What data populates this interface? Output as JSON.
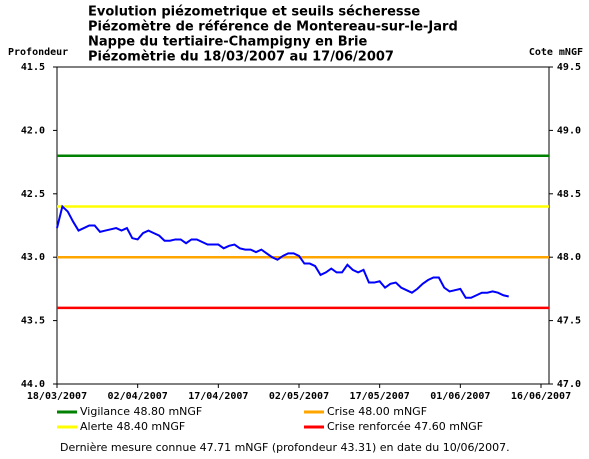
{
  "chart_data": {
    "type": "line",
    "title": [
      "Evolution piézometrique et seuils sécheresse",
      "Piézomètre de référence de Montereau-sur-le-Jard",
      "Nappe du tertiaire-Champigny en Brie",
      "Piézomètrie du 18/03/2007 au 17/06/2007"
    ],
    "ylabel": "Profondeur",
    "y2label": "Cote mNGF",
    "x": [
      "18/03/2007",
      "19/03/2007",
      "20/03/2007",
      "21/03/2007",
      "22/03/2007",
      "23/03/2007",
      "24/03/2007",
      "25/03/2007",
      "26/03/2007",
      "27/03/2007",
      "28/03/2007",
      "29/03/2007",
      "30/03/2007",
      "31/03/2007",
      "01/04/2007",
      "02/04/2007",
      "03/04/2007",
      "04/04/2007",
      "05/04/2007",
      "06/04/2007",
      "07/04/2007",
      "08/04/2007",
      "09/04/2007",
      "10/04/2007",
      "11/04/2007",
      "12/04/2007",
      "13/04/2007",
      "14/04/2007",
      "15/04/2007",
      "16/04/2007",
      "17/04/2007",
      "18/04/2007",
      "19/04/2007",
      "20/04/2007",
      "21/04/2007",
      "22/04/2007",
      "23/04/2007",
      "24/04/2007",
      "25/04/2007",
      "26/04/2007",
      "27/04/2007",
      "28/04/2007",
      "29/04/2007",
      "30/04/2007",
      "01/05/2007",
      "02/05/2007",
      "03/05/2007",
      "04/05/2007",
      "05/05/2007",
      "06/05/2007",
      "07/05/2007",
      "08/05/2007",
      "09/05/2007",
      "10/05/2007",
      "11/05/2007",
      "12/05/2007",
      "13/05/2007",
      "14/05/2007",
      "15/05/2007",
      "16/05/2007",
      "17/05/2007",
      "18/05/2007",
      "19/05/2007",
      "20/05/2007",
      "21/05/2007",
      "22/05/2007",
      "23/05/2007",
      "24/05/2007",
      "25/05/2007",
      "26/05/2007",
      "27/05/2007",
      "28/05/2007",
      "29/05/2007",
      "30/05/2007",
      "31/05/2007",
      "01/06/2007",
      "02/06/2007",
      "03/06/2007",
      "04/06/2007",
      "05/06/2007",
      "06/06/2007",
      "07/06/2007",
      "08/06/2007",
      "09/06/2007",
      "10/06/2007"
    ],
    "series": [
      {
        "color": "#0000ff",
        "values": [
          42.77,
          42.6,
          42.64,
          42.72,
          42.79,
          42.77,
          42.75,
          42.75,
          42.8,
          42.79,
          42.78,
          42.77,
          42.79,
          42.77,
          42.85,
          42.86,
          42.81,
          42.79,
          42.81,
          42.83,
          42.87,
          42.87,
          42.86,
          42.86,
          42.89,
          42.86,
          42.86,
          42.88,
          42.9,
          42.9,
          42.9,
          42.93,
          42.91,
          42.9,
          42.93,
          42.94,
          42.94,
          42.96,
          42.94,
          42.97,
          43.0,
          43.02,
          42.99,
          42.97,
          42.97,
          42.99,
          43.05,
          43.05,
          43.07,
          43.14,
          43.12,
          43.09,
          43.12,
          43.12,
          43.06,
          43.1,
          43.12,
          43.1,
          43.2,
          43.2,
          43.19,
          43.24,
          43.21,
          43.2,
          43.24,
          43.26,
          43.28,
          43.25,
          43.21,
          43.18,
          43.16,
          43.16,
          43.24,
          43.27,
          43.26,
          43.25,
          43.32,
          43.32,
          43.3,
          43.28,
          43.28,
          43.27,
          43.28,
          43.3,
          43.31
        ]
      }
    ],
    "thresholds": [
      {
        "name": "Vigilance 48.80 mNGF",
        "value": 48.8,
        "color": "#008000"
      },
      {
        "name": "Alerte 48.40 mNGF",
        "value": 48.4,
        "color": "#ffff00"
      },
      {
        "name": "Crise 48.00 mNGF",
        "value": 48.0,
        "color": "#ffa500"
      },
      {
        "name": "Crise renforcée 47.60 mNGF",
        "value": 47.6,
        "color": "#ff0000"
      }
    ],
    "xlim": [
      "18/03/2007",
      "16/06/2007"
    ],
    "xticks": [
      "18/03/2007",
      "02/04/2007",
      "17/04/2007",
      "02/05/2007",
      "17/05/2007",
      "01/06/2007",
      "16/06/2007"
    ],
    "ylim": [
      44.0,
      41.5
    ],
    "yticks": [
      41.5,
      {
        "value": 42.0,
        "label": "42.0"
      },
      42.5,
      {
        "value": 43.0,
        "label": "43.0"
      },
      43.5,
      {
        "value": 44.0,
        "label": "44.0"
      }
    ],
    "y2lim": [
      47.0,
      49.5
    ],
    "y2ticks": [
      49.5,
      {
        "value": 49.0,
        "label": "49.0"
      },
      48.5,
      {
        "value": 48.0,
        "label": "48.0"
      },
      47.5,
      {
        "value": 47.0,
        "label": "47.0"
      }
    ],
    "footnote": "Dernière mesure connue 47.71 mNGF (profondeur 43.31) en date du 10/06/2007."
  }
}
